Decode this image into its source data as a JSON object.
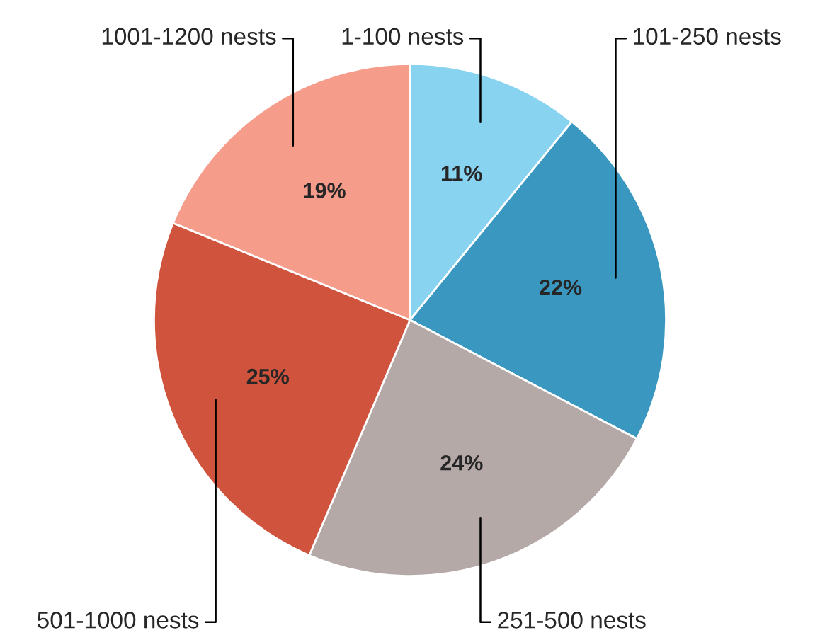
{
  "chart_data": {
    "type": "pie",
    "categories": [
      "1-100 nests",
      "101-250 nests",
      "251-500 nests",
      "501-1000 nests",
      "1001-1200 nests"
    ],
    "values": [
      11,
      22,
      24,
      25,
      19
    ],
    "value_labels": [
      "11%",
      "22%",
      "24%",
      "25%",
      "19%"
    ],
    "colors": [
      "#87d3f0",
      "#3a98c0",
      "#b5a9a8",
      "#d0533d",
      "#f59c8b"
    ]
  }
}
